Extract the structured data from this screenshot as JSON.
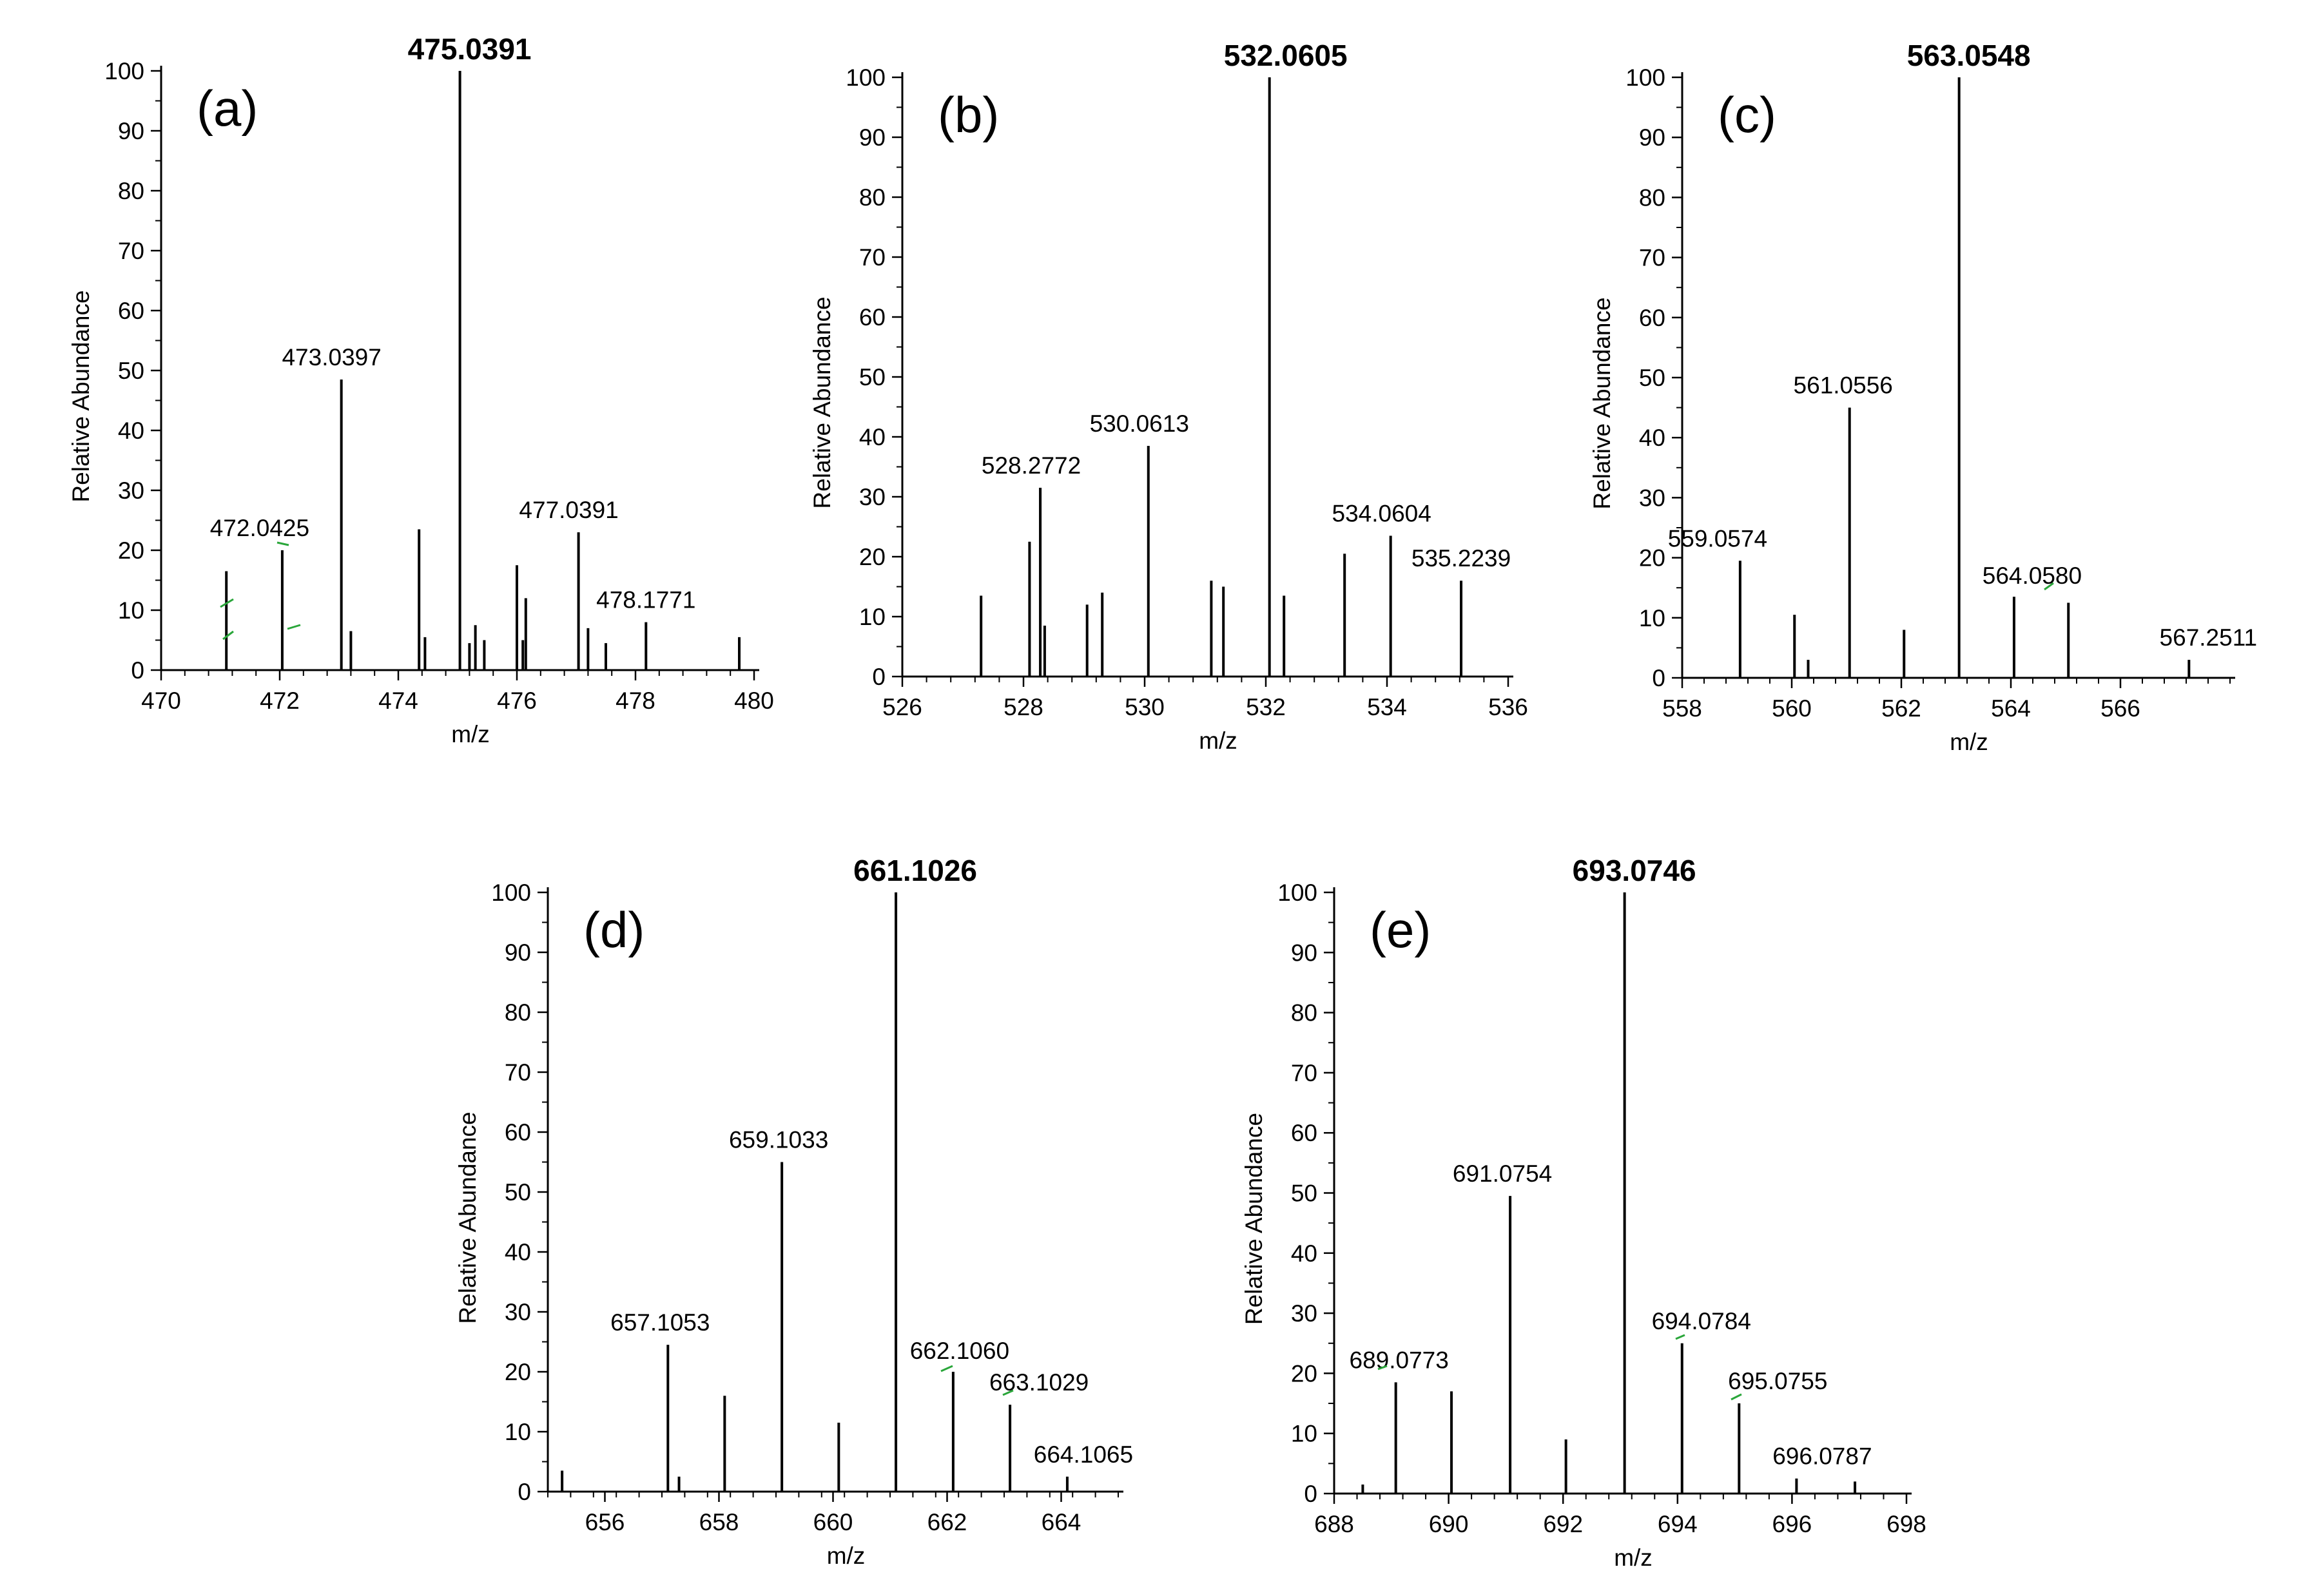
{
  "chart_data": [
    {
      "type": "bar",
      "panel": "(a)",
      "xlabel": "m/z",
      "ylabel": "Relative Abundance",
      "xlim": [
        470,
        480
      ],
      "ylim": [
        0,
        100
      ],
      "xticks": [
        470,
        472,
        474,
        476,
        478,
        480
      ],
      "yticks": [
        0,
        10,
        20,
        30,
        40,
        50,
        60,
        70,
        80,
        90,
        100
      ],
      "peaks": [
        {
          "x": 471.1,
          "y": 16.5,
          "label": null
        },
        {
          "x": 472.0425,
          "y": 20,
          "label": "472.0425"
        },
        {
          "x": 473.0397,
          "y": 48.5,
          "label": "473.0397"
        },
        {
          "x": 473.2,
          "y": 6.5,
          "label": null
        },
        {
          "x": 474.35,
          "y": 23.5,
          "label": null
        },
        {
          "x": 474.45,
          "y": 5.5,
          "label": null
        },
        {
          "x": 475.0391,
          "y": 100,
          "label": "475.0391",
          "bold": true
        },
        {
          "x": 475.2,
          "y": 4.5,
          "label": null
        },
        {
          "x": 475.3,
          "y": 7.5,
          "label": null
        },
        {
          "x": 475.45,
          "y": 5,
          "label": null
        },
        {
          "x": 476.0,
          "y": 17.5,
          "label": null
        },
        {
          "x": 476.1,
          "y": 5,
          "label": null
        },
        {
          "x": 476.15,
          "y": 12,
          "label": null
        },
        {
          "x": 477.0391,
          "y": 23,
          "label": "477.0391"
        },
        {
          "x": 477.2,
          "y": 7,
          "label": null
        },
        {
          "x": 477.5,
          "y": 4.5,
          "label": null
        },
        {
          "x": 478.1771,
          "y": 8,
          "label": "478.1771"
        },
        {
          "x": 479.75,
          "y": 5.5,
          "label": null
        }
      ]
    },
    {
      "type": "bar",
      "panel": "(b)",
      "xlabel": "m/z",
      "ylabel": "Relative Abundance",
      "xlim": [
        526,
        536
      ],
      "ylim": [
        0,
        100
      ],
      "xticks": [
        526,
        528,
        530,
        532,
        534,
        536
      ],
      "yticks": [
        0,
        10,
        20,
        30,
        40,
        50,
        60,
        70,
        80,
        90,
        100
      ],
      "peaks": [
        {
          "x": 527.3,
          "y": 13.5,
          "label": null
        },
        {
          "x": 528.1,
          "y": 22.5,
          "label": null
        },
        {
          "x": 528.2772,
          "y": 31.5,
          "label": "528.2772"
        },
        {
          "x": 528.35,
          "y": 8.5,
          "label": null
        },
        {
          "x": 529.05,
          "y": 12,
          "label": null
        },
        {
          "x": 529.3,
          "y": 14,
          "label": null
        },
        {
          "x": 530.0613,
          "y": 38.5,
          "label": "530.0613"
        },
        {
          "x": 531.1,
          "y": 16,
          "label": null
        },
        {
          "x": 531.3,
          "y": 15,
          "label": null
        },
        {
          "x": 532.0605,
          "y": 100,
          "label": "532.0605",
          "bold": true
        },
        {
          "x": 532.3,
          "y": 13.5,
          "label": null
        },
        {
          "x": 533.3,
          "y": 20.5,
          "label": null
        },
        {
          "x": 534.0604,
          "y": 23.5,
          "label": "534.0604"
        },
        {
          "x": 535.2239,
          "y": 16,
          "label": "535.2239"
        }
      ]
    },
    {
      "type": "bar",
      "panel": "(c)",
      "xlabel": "m/z",
      "ylabel": "Relative Abundance",
      "xlim": [
        558,
        568
      ],
      "ylim": [
        0,
        100
      ],
      "xticks": [
        558,
        560,
        562,
        564,
        566
      ],
      "yticks": [
        0,
        10,
        20,
        30,
        40,
        50,
        60,
        70,
        80,
        90,
        100
      ],
      "peaks": [
        {
          "x": 559.0574,
          "y": 19.5,
          "label": "559.0574"
        },
        {
          "x": 560.05,
          "y": 10.5,
          "label": null
        },
        {
          "x": 560.3,
          "y": 3,
          "label": null
        },
        {
          "x": 561.0556,
          "y": 45,
          "label": "561.0556"
        },
        {
          "x": 562.05,
          "y": 8,
          "label": null
        },
        {
          "x": 563.0548,
          "y": 100,
          "label": "563.0548",
          "bold": true
        },
        {
          "x": 564.058,
          "y": 13.5,
          "label": "564.0580"
        },
        {
          "x": 565.05,
          "y": 12.5,
          "label": null
        },
        {
          "x": 567.2511,
          "y": 3,
          "label": "567.2511"
        }
      ]
    },
    {
      "type": "bar",
      "panel": "(d)",
      "xlabel": "m/z",
      "ylabel": "Relative Abundance",
      "xlim": [
        655,
        665
      ],
      "ylim": [
        0,
        100
      ],
      "xticks": [
        656,
        658,
        660,
        662,
        664
      ],
      "yticks": [
        0,
        10,
        20,
        30,
        40,
        50,
        60,
        70,
        80,
        90,
        100
      ],
      "peaks": [
        {
          "x": 655.25,
          "y": 3.5,
          "label": null
        },
        {
          "x": 657.1053,
          "y": 24.5,
          "label": "657.1053"
        },
        {
          "x": 657.3,
          "y": 2.5,
          "label": null
        },
        {
          "x": 658.1,
          "y": 16,
          "label": null
        },
        {
          "x": 659.1033,
          "y": 55,
          "label": "659.1033"
        },
        {
          "x": 660.1,
          "y": 11.5,
          "label": null
        },
        {
          "x": 661.1026,
          "y": 100,
          "label": "661.1026",
          "bold": true
        },
        {
          "x": 662.106,
          "y": 20,
          "label": "662.1060"
        },
        {
          "x": 663.1029,
          "y": 14.5,
          "label": "663.1029"
        },
        {
          "x": 664.1065,
          "y": 2.5,
          "label": "664.1065"
        }
      ]
    },
    {
      "type": "bar",
      "panel": "(e)",
      "xlabel": "m/z",
      "ylabel": "Relative Abundance",
      "xlim": [
        688,
        698
      ],
      "ylim": [
        0,
        100
      ],
      "xticks": [
        688,
        690,
        692,
        694,
        696,
        698
      ],
      "yticks": [
        0,
        10,
        20,
        30,
        40,
        50,
        60,
        70,
        80,
        90,
        100
      ],
      "peaks": [
        {
          "x": 688.5,
          "y": 1.5,
          "label": null
        },
        {
          "x": 689.0773,
          "y": 18.5,
          "label": "689.0773"
        },
        {
          "x": 690.05,
          "y": 17,
          "label": null
        },
        {
          "x": 691.0754,
          "y": 49.5,
          "label": "691.0754"
        },
        {
          "x": 692.05,
          "y": 9,
          "label": null
        },
        {
          "x": 693.0746,
          "y": 100,
          "label": "693.0746",
          "bold": true
        },
        {
          "x": 694.0784,
          "y": 25,
          "label": "694.0784"
        },
        {
          "x": 695.0755,
          "y": 15,
          "label": "695.0755"
        },
        {
          "x": 696.0787,
          "y": 2.5,
          "label": "696.0787"
        },
        {
          "x": 697.1,
          "y": 2,
          "label": null
        }
      ]
    }
  ]
}
